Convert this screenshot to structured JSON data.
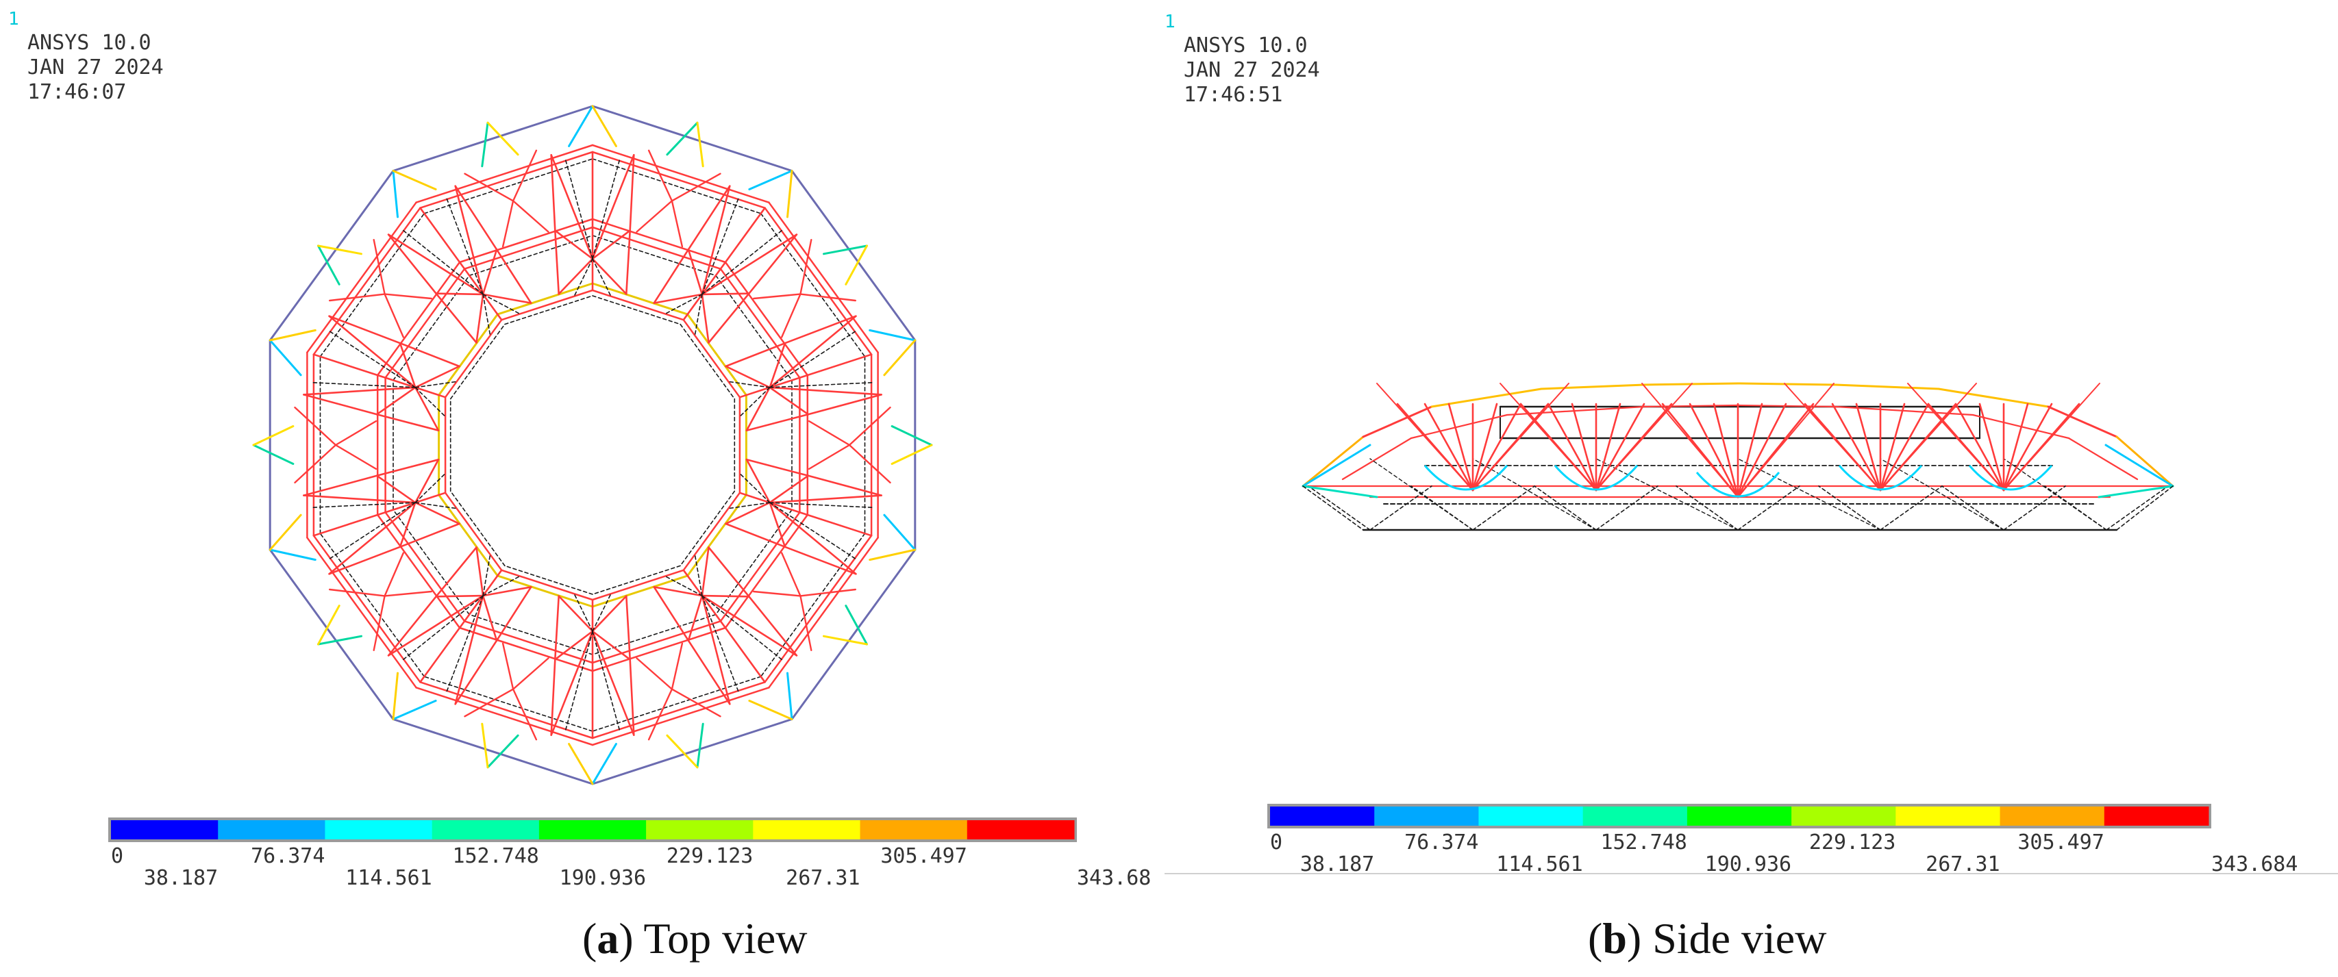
{
  "panel_a": {
    "window_number": "1",
    "product": "ANSYS 10.0",
    "date": "JAN 27 2024",
    "time": "17:46:07",
    "legend": {
      "upper_labels": [
        "0",
        "76.374",
        "152.748",
        "229.123",
        "305.497"
      ],
      "lower_labels": [
        "38.187",
        "114.561",
        "190.936",
        "267.31",
        "343.68"
      ]
    },
    "caption_letter": "a",
    "caption_text": "Top view"
  },
  "panel_b": {
    "window_number": "1",
    "product": "ANSYS 10.0",
    "date": "JAN 27 2024",
    "time": "17:46:51",
    "legend": {
      "upper_labels": [
        "0",
        "76.374",
        "152.748",
        "229.123",
        "305.497"
      ],
      "lower_labels": [
        "38.187",
        "114.561",
        "190.936",
        "267.31",
        "343.684"
      ]
    },
    "caption_letter": "b",
    "caption_text": "Side view"
  },
  "contour_colors": [
    "#0000ff",
    "#00a8ff",
    "#00ffff",
    "#00ffa8",
    "#00ff00",
    "#a8ff00",
    "#ffff00",
    "#ffa800",
    "#ff0000"
  ],
  "member_colors": {
    "primary": "#ff3b3b",
    "secondary": "#1a1a1a",
    "outer_ring": "#6b6bb0",
    "highlight": "#e8c800"
  }
}
